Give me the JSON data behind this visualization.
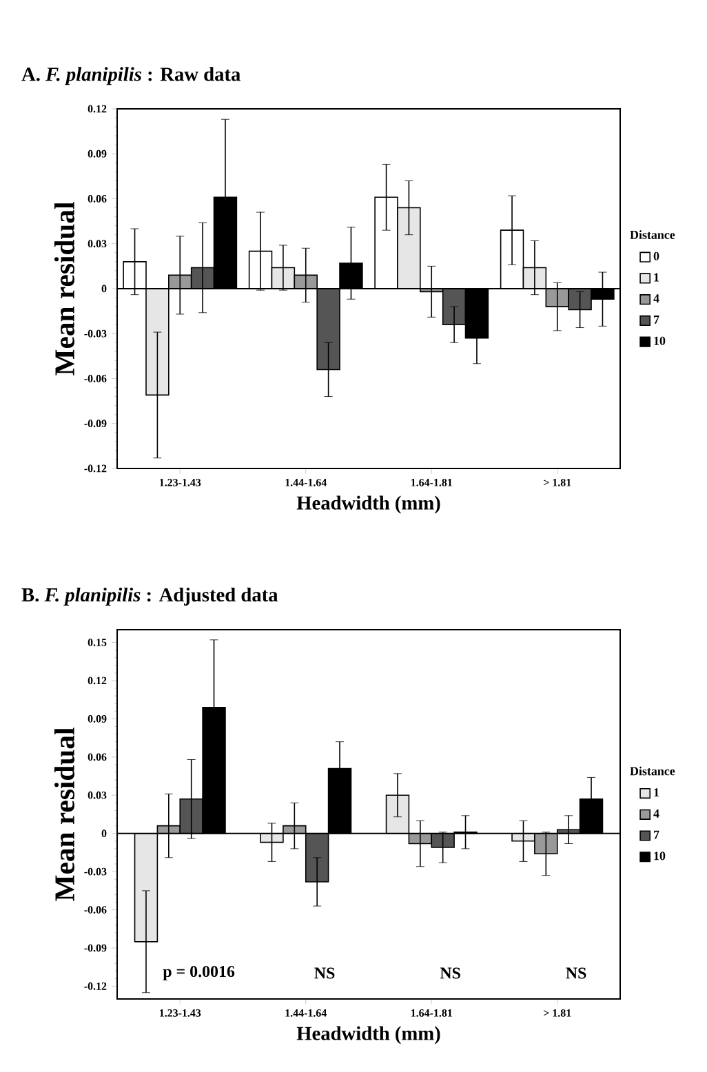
{
  "chart_data": [
    {
      "type": "bar",
      "title": "A.  *F. planipilis*  : Raw data",
      "xlabel": "Headwidth (mm)",
      "ylabel": "Mean residual",
      "legend_title": "Distance",
      "legend": "right",
      "categories": [
        "1.23-1.43",
        "1.44-1.64",
        "1.64-1.81",
        "> 1.81"
      ],
      "ylim": [
        -0.12,
        0.12
      ],
      "yticks": [
        -0.12,
        -0.09,
        -0.06,
        -0.03,
        0,
        0.03,
        0.06,
        0.09,
        0.12
      ],
      "series": [
        {
          "name": "0",
          "color": "#ffffff",
          "values": [
            0.018,
            0.025,
            0.061,
            0.039
          ],
          "errors": [
            0.022,
            0.026,
            0.022,
            0.023
          ]
        },
        {
          "name": "1",
          "color": "#e6e6e6",
          "values": [
            -0.071,
            0.014,
            0.054,
            0.014
          ],
          "errors": [
            0.042,
            0.015,
            0.018,
            0.018
          ]
        },
        {
          "name": "4",
          "color": "#999999",
          "values": [
            0.009,
            0.009,
            -0.002,
            -0.012
          ],
          "errors": [
            0.026,
            0.018,
            0.017,
            0.016
          ]
        },
        {
          "name": "7",
          "color": "#555555",
          "values": [
            0.014,
            -0.054,
            -0.024,
            -0.014
          ],
          "errors": [
            0.03,
            0.018,
            0.012,
            0.012
          ]
        },
        {
          "name": "10",
          "color": "#000000",
          "values": [
            0.061,
            0.017,
            -0.033,
            -0.007
          ],
          "errors": [
            0.052,
            0.024,
            0.017,
            0.018
          ]
        }
      ]
    },
    {
      "type": "bar",
      "title": "B.  *F. planipilis*  : Adjusted data",
      "xlabel": "Headwidth (mm)",
      "ylabel": "Mean residual",
      "legend_title": "Distance",
      "legend": "right",
      "categories": [
        "1.23-1.43",
        "1.44-1.64",
        "1.64-1.81",
        "> 1.81"
      ],
      "ylim": [
        -0.13,
        0.16
      ],
      "yticks": [
        -0.12,
        -0.09,
        -0.06,
        -0.03,
        0,
        0.03,
        0.06,
        0.09,
        0.12,
        0.15
      ],
      "annotations": [
        "p = 0.0016",
        "NS",
        "NS",
        "NS"
      ],
      "series": [
        {
          "name": "1",
          "color": "#e6e6e6",
          "values": [
            -0.085,
            -0.007,
            0.03,
            -0.006
          ],
          "errors": [
            0.04,
            0.015,
            0.017,
            0.016
          ]
        },
        {
          "name": "4",
          "color": "#999999",
          "values": [
            0.006,
            0.006,
            -0.008,
            -0.016
          ],
          "errors": [
            0.025,
            0.018,
            0.018,
            0.017
          ]
        },
        {
          "name": "7",
          "color": "#555555",
          "values": [
            0.027,
            -0.038,
            -0.011,
            0.003
          ],
          "errors": [
            0.031,
            0.019,
            0.012,
            0.011
          ]
        },
        {
          "name": "10",
          "color": "#000000",
          "values": [
            0.099,
            0.051,
            0.001,
            0.027
          ],
          "errors": [
            0.053,
            0.021,
            0.013,
            0.017
          ]
        }
      ]
    }
  ]
}
